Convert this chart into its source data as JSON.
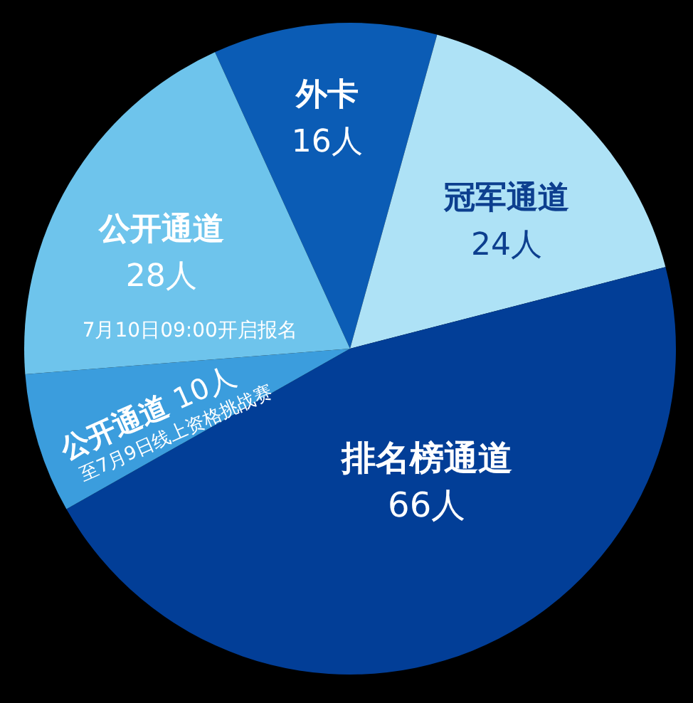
{
  "chart_data": {
    "type": "pie",
    "categories": [
      "外卡",
      "冠军通道",
      "排名榜通道",
      "公开通道",
      "公开通道"
    ],
    "values": [
      16,
      24,
      66,
      10,
      28
    ],
    "colors": [
      "#0b5cb5",
      "#aee2f6",
      "#023e97",
      "#3b9ddd",
      "#6ec4ec"
    ],
    "value_labels": [
      "16人",
      "24人",
      "66人",
      "10人",
      "28人"
    ],
    "annotations": [
      "7月10日09:00开启报名",
      "至7月9日线上资格挑战赛"
    ]
  }
}
